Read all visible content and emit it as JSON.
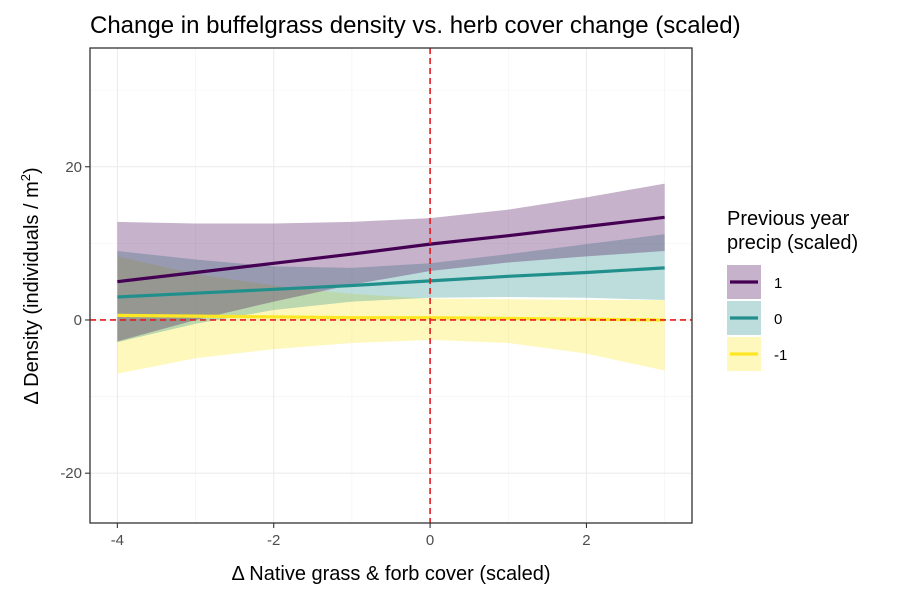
{
  "chart_data": {
    "type": "line",
    "title": "Change in buffelgrass density vs. herb cover change (scaled)",
    "xlabel": "Δ Native grass & forb cover (scaled)",
    "ylabel_main": "Δ Density (individuals / m",
    "ylabel_sup": "2",
    "ylabel_close": ")",
    "xlim": [
      -4.35,
      3.35
    ],
    "ylim": [
      -26.5,
      35.5
    ],
    "x_ticks": [
      -4,
      -2,
      0,
      2
    ],
    "x_tick_labels": [
      "-4",
      "-2",
      "0",
      "2"
    ],
    "y_ticks": [
      -20,
      0,
      20
    ],
    "y_tick_labels": [
      "-20",
      "0",
      "20"
    ],
    "x_minor_ticks": [
      -3,
      -1,
      1,
      3
    ],
    "y_minor_ticks": [
      -10,
      10,
      30
    ],
    "grid": true,
    "reference_lines": {
      "vertical_x": 0,
      "horizontal_y": 0,
      "color": "#e41a1c",
      "style": "dashed"
    },
    "legend": {
      "title_line1": "Previous year",
      "title_line2": "precip (scaled)",
      "position": "right"
    },
    "series": [
      {
        "name": "1",
        "color": "#440154",
        "fill": "#440154",
        "x": [
          -4,
          -3,
          -2,
          -1,
          0,
          1,
          2,
          3
        ],
        "y": [
          5.0,
          6.2,
          7.4,
          8.6,
          9.9,
          11.0,
          12.2,
          13.4
        ],
        "ymin": [
          -2.8,
          0.0,
          2.4,
          4.6,
          6.4,
          7.5,
          8.3,
          9.0
        ],
        "ymax": [
          12.8,
          12.6,
          12.6,
          12.8,
          13.3,
          14.4,
          16.0,
          17.8
        ]
      },
      {
        "name": "0",
        "color": "#21908c",
        "fill": "#21908c",
        "x": [
          -4,
          -3,
          -2,
          -1,
          0,
          1,
          2,
          3
        ],
        "y": [
          3.0,
          3.5,
          4.0,
          4.5,
          5.1,
          5.7,
          6.2,
          6.8
        ],
        "ymin": [
          -2.9,
          -0.5,
          1.3,
          2.4,
          2.9,
          3.0,
          2.9,
          2.6
        ],
        "ymax": [
          9.0,
          7.9,
          7.0,
          6.8,
          7.4,
          8.6,
          9.9,
          11.2
        ]
      },
      {
        "name": "-1",
        "color": "#fde725",
        "fill": "#fde725",
        "x": [
          -4,
          -3,
          -2,
          -1,
          0,
          1,
          2,
          3
        ],
        "y": [
          0.6,
          0.5,
          0.4,
          0.3,
          0.3,
          0.2,
          0.1,
          0.0
        ],
        "ymin": [
          -7.0,
          -5.0,
          -3.8,
          -3.0,
          -2.6,
          -3.0,
          -4.4,
          -6.6
        ],
        "ymax": [
          8.3,
          6.0,
          4.5,
          3.4,
          2.8,
          2.7,
          2.6,
          2.6
        ]
      }
    ]
  }
}
